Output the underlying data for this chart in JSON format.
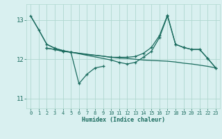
{
  "xlabel": "Humidex (Indice chaleur)",
  "ylabel": "",
  "background_color": "#d9f0f0",
  "line_color": "#1a6b5e",
  "grid_color": "#b0d8d0",
  "xlim": [
    -0.5,
    23.5
  ],
  "ylim": [
    10.75,
    13.4
  ],
  "yticks": [
    11,
    12,
    13
  ],
  "xtick_labels": [
    "0",
    "1",
    "2",
    "3",
    "4",
    "5",
    "6",
    "7",
    "8",
    "9",
    "10",
    "11",
    "12",
    "13",
    "14",
    "15",
    "16",
    "17",
    "18",
    "19",
    "20",
    "21",
    "22",
    "23"
  ],
  "xticks": [
    0,
    1,
    2,
    3,
    4,
    5,
    6,
    7,
    8,
    9,
    10,
    11,
    12,
    13,
    14,
    15,
    16,
    17,
    18,
    19,
    20,
    21,
    22,
    23
  ],
  "series": [
    {
      "x": [
        0,
        1,
        2,
        3,
        4,
        5,
        6,
        7,
        8,
        9,
        10,
        11,
        12,
        13,
        14,
        15,
        16,
        17,
        18,
        19,
        20,
        21,
        22,
        23
      ],
      "y": [
        13.1,
        12.75,
        12.38,
        12.28,
        12.22,
        12.18,
        12.15,
        12.12,
        12.1,
        12.08,
        12.05,
        12.03,
        12.02,
        12.0,
        11.98,
        11.97,
        11.96,
        11.95,
        11.93,
        11.9,
        11.88,
        11.85,
        11.82,
        11.78
      ],
      "has_marker": false
    },
    {
      "x": [
        0,
        1,
        2,
        3,
        4,
        5,
        10,
        11,
        12,
        13,
        14,
        15,
        16,
        17,
        18,
        19,
        20,
        21,
        22,
        23
      ],
      "y": [
        13.1,
        12.75,
        12.38,
        12.28,
        12.22,
        12.18,
        12.05,
        12.05,
        12.05,
        12.07,
        12.15,
        12.3,
        12.6,
        13.12,
        12.38,
        12.3,
        12.25,
        12.25,
        12.02,
        11.78
      ],
      "has_marker": true
    },
    {
      "x": [
        2,
        3,
        4,
        5,
        10,
        11,
        12,
        13,
        14,
        15,
        16,
        17,
        18,
        19,
        20,
        21,
        22,
        23
      ],
      "y": [
        12.28,
        12.25,
        12.2,
        12.18,
        11.98,
        11.92,
        11.88,
        11.92,
        12.05,
        12.2,
        12.55,
        13.1,
        12.38,
        12.3,
        12.25,
        12.25,
        12.02,
        11.78
      ],
      "has_marker": true
    },
    {
      "x": [
        2,
        3,
        4,
        5,
        6,
        7,
        8,
        9
      ],
      "y": [
        12.28,
        12.25,
        12.2,
        12.18,
        11.38,
        11.62,
        11.78,
        11.82
      ],
      "has_marker": true
    }
  ]
}
